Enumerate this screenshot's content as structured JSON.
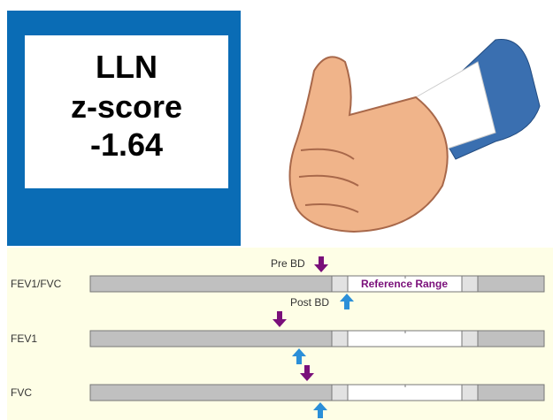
{
  "lln_box": {
    "line1": "LLN",
    "line2": "z-score",
    "line3": "-1.64"
  },
  "panel": {
    "rows": [
      {
        "label": "FEV1/FVC"
      },
      {
        "label": "FEV1"
      },
      {
        "label": "FVC"
      }
    ],
    "pre_label": "Pre BD",
    "post_label": "Post BD",
    "reference_label": "Reference Range"
  }
}
